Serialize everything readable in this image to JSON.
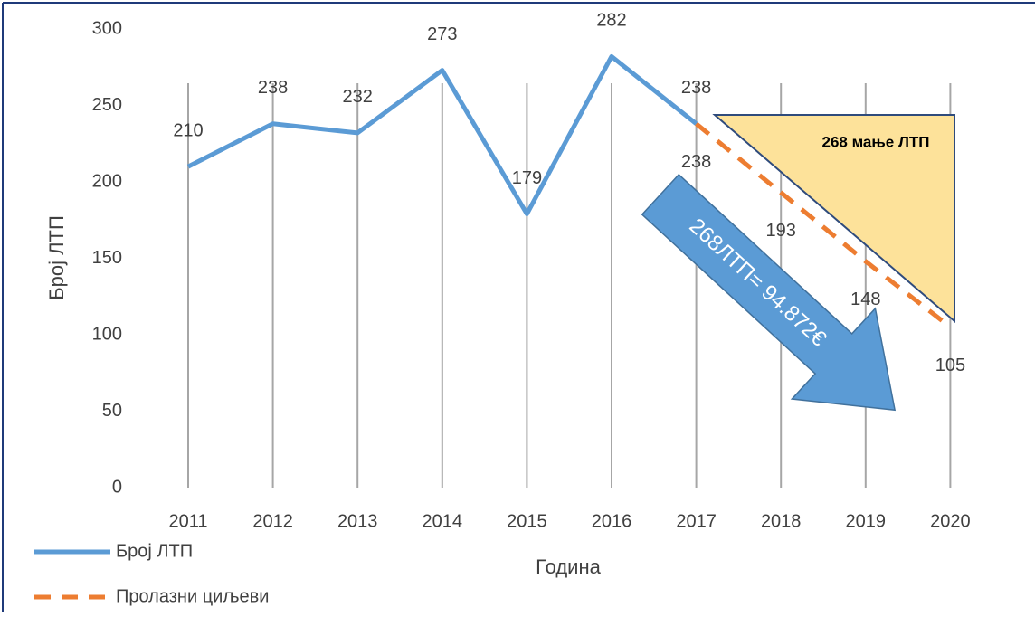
{
  "chart_data": {
    "type": "line",
    "x_label": "Година",
    "y_label": "Број ЛТП",
    "categories": [
      "2011",
      "2012",
      "2013",
      "2014",
      "2015",
      "2016",
      "2017",
      "2018",
      "2019",
      "2020"
    ],
    "series": [
      {
        "name": "Број ЛТП",
        "color": "#5b9bd5",
        "dashed": false,
        "label_position": "above",
        "values": [
          210,
          238,
          232,
          273,
          179,
          282,
          238,
          null,
          null,
          null
        ]
      },
      {
        "name": "Пролазни циљеви",
        "color": "#ed7d31",
        "dashed": true,
        "label_position": "below",
        "values": [
          null,
          null,
          null,
          null,
          null,
          null,
          238,
          193,
          148,
          105
        ]
      }
    ],
    "ylim": [
      0,
      300
    ],
    "yticks": [
      0,
      50,
      100,
      150,
      200,
      250,
      300
    ],
    "vertical_grid": true,
    "legend": "bottom-left",
    "annotations": {
      "triangle": "268 мање ЛТП",
      "arrow": "268ЛТП= 94.872€"
    }
  }
}
